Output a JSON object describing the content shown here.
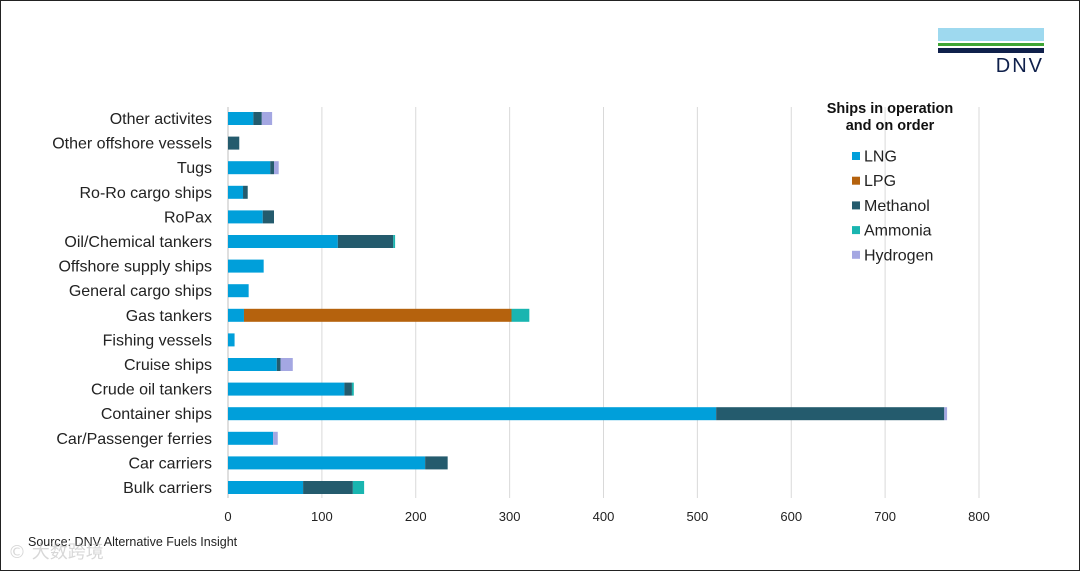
{
  "logo": {
    "text": "DNV"
  },
  "source": "Source: DNV Alternative Fuels Insight",
  "watermark": "© 大数跨境",
  "chart_data": {
    "type": "bar",
    "orientation": "horizontal",
    "stacked": true,
    "title": "",
    "xlabel": "",
    "ylabel": "",
    "xlim": [
      0,
      800
    ],
    "x_ticks": [
      0,
      100,
      200,
      300,
      400,
      500,
      600,
      700,
      800
    ],
    "grid": "vertical",
    "legend": {
      "title": "Ships in operation\nand on order",
      "placement": "right"
    },
    "categories": [
      "Other activites",
      "Other offshore vessels",
      "Tugs",
      "Ro-Ro cargo ships",
      "RoPax",
      "Oil/Chemical tankers",
      "Offshore supply ships",
      "General cargo ships",
      "Gas tankers",
      "Fishing vessels",
      "Cruise ships",
      "Crude oil tankers",
      "Container ships",
      "Car/Passenger ferries",
      "Car carriers",
      "Bulk carriers"
    ],
    "series": [
      {
        "name": "LNG",
        "color": "#009fda",
        "values": [
          27,
          0,
          45,
          16,
          37,
          117,
          38,
          22,
          17,
          7,
          52,
          124,
          520,
          48,
          210,
          80
        ]
      },
      {
        "name": "LPG",
        "color": "#b5620d",
        "values": [
          0,
          0,
          0,
          0,
          0,
          0,
          0,
          0,
          285,
          0,
          0,
          0,
          0,
          0,
          0,
          0
        ]
      },
      {
        "name": "Methanol",
        "color": "#245b6d",
        "values": [
          9,
          12,
          4,
          5,
          12,
          59,
          0,
          0,
          0,
          0,
          4,
          8,
          243,
          0,
          24,
          53
        ]
      },
      {
        "name": "Ammonia",
        "color": "#19b5b0",
        "values": [
          0,
          0,
          0,
          0,
          0,
          2,
          0,
          0,
          19,
          0,
          0,
          2,
          0,
          0,
          0,
          12
        ]
      },
      {
        "name": "Hydrogen",
        "color": "#a4a7e2",
        "values": [
          11,
          0,
          5,
          0,
          0,
          0,
          0,
          0,
          0,
          0,
          13,
          0,
          3,
          5,
          0,
          0
        ]
      }
    ]
  }
}
